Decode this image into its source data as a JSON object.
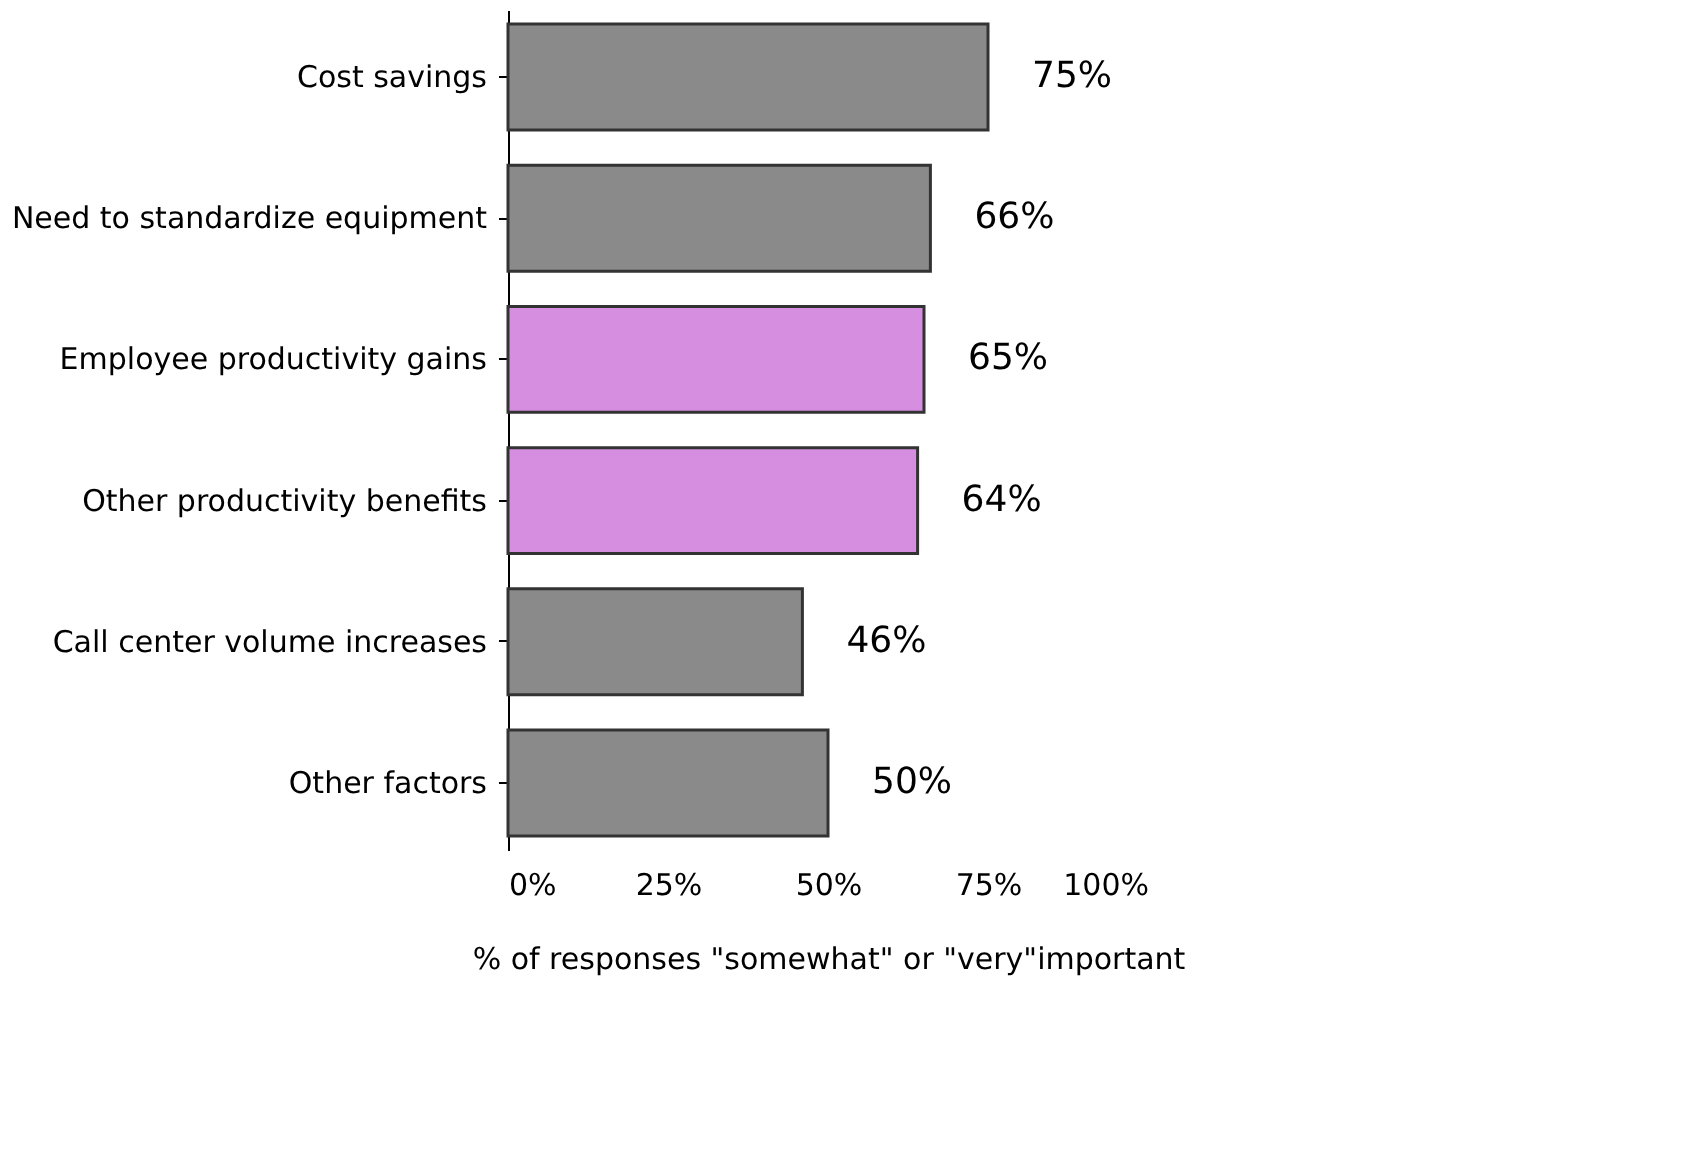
{
  "chart_data": {
    "type": "bar",
    "orientation": "horizontal",
    "categories": [
      "Cost savings",
      "Need to standardize equipment",
      "Employee productivity gains",
      "Other productivity benefits",
      "Call center volume increases",
      "Other factors"
    ],
    "values": [
      75,
      66,
      65,
      64,
      46,
      50
    ],
    "colors": [
      "#8a8a8a",
      "#8a8a8a",
      "#d68fe0",
      "#d68fe0",
      "#8a8a8a",
      "#8a8a8a"
    ],
    "value_labels": [
      "75%",
      "66%",
      "65%",
      "64%",
      "46%",
      "50%"
    ],
    "xlabel": "% of responses \"somewhat\" or \"very\"important",
    "xlim": [
      0,
      100
    ],
    "xticks": [
      {
        "value": 0,
        "label": "0%"
      },
      {
        "value": 25,
        "label": "25%"
      },
      {
        "value": 50,
        "label": "50%"
      },
      {
        "value": 75,
        "label": "75%"
      },
      {
        "value": 100,
        "label": "100%"
      }
    ],
    "grid": false
  }
}
